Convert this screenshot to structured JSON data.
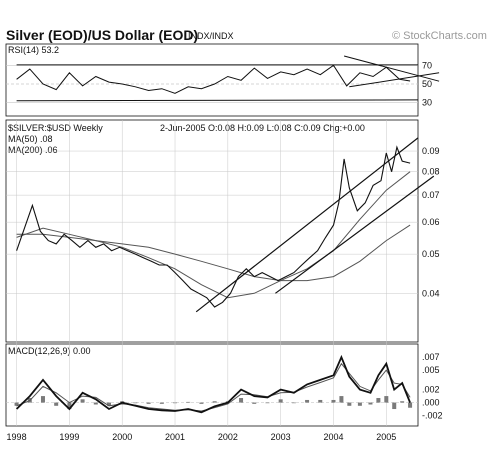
{
  "header": {
    "title": "Silver (EOD)/US Dollar (EOD)",
    "exchange": "INDX/INDX",
    "watermark": "© StockCharts.com"
  },
  "colors": {
    "background": "#ffffff",
    "ink": "#111111",
    "grid": "#c8c8c8",
    "ma_line": "#555555",
    "histogram": "#7a7a7a"
  },
  "chart_data": [
    {
      "type": "line",
      "panel": "rsi",
      "label": "RSI(14) 53.2",
      "ylim": [
        20,
        80
      ],
      "yticks": [
        70,
        50,
        30
      ],
      "levels": [
        70,
        50,
        30
      ],
      "x": [
        1998.0,
        1998.25,
        1998.5,
        1998.75,
        1999.0,
        1999.25,
        1999.5,
        1999.75,
        2000.0,
        2000.25,
        2000.5,
        2000.75,
        2001.0,
        2001.25,
        2001.5,
        2001.75,
        2002.0,
        2002.25,
        2002.5,
        2002.75,
        2003.0,
        2003.25,
        2003.5,
        2003.75,
        2004.0,
        2004.25,
        2004.5,
        2004.75,
        2005.0,
        2005.25,
        2005.45
      ],
      "values": [
        55,
        66,
        50,
        44,
        62,
        48,
        58,
        52,
        50,
        47,
        43,
        45,
        40,
        47,
        45,
        50,
        58,
        54,
        67,
        56,
        63,
        60,
        66,
        60,
        70,
        48,
        62,
        58,
        68,
        55,
        53.2
      ],
      "trendlines": [
        {
          "x": [
            1998.0,
            2005.6
          ],
          "y": [
            70.5,
            70.5
          ]
        },
        {
          "x": [
            1998.0,
            2005.6
          ],
          "y": [
            32,
            33
          ]
        },
        {
          "x": [
            2004.2,
            2006.0
          ],
          "y": [
            80,
            53
          ]
        },
        {
          "x": [
            2004.3,
            2006.0
          ],
          "y": [
            47,
            62
          ]
        }
      ]
    },
    {
      "type": "line",
      "panel": "price",
      "label": "$SILVER:$USD Weekly",
      "ohlc_text": "2-Jun-2005 O:0.08 H:0.09 L:0.08 C:0.09 Chg:+0.00",
      "ma50_label": "MA(50) .08",
      "ma200_label": "MA(200) .06",
      "scale": "log",
      "ylim": [
        0.031,
        0.105
      ],
      "yticks": [
        0.09,
        0.08,
        0.07,
        0.06,
        0.05,
        0.04
      ],
      "ytick_labels": [
        "0.09",
        "0.08",
        "0.07",
        "0.06",
        "0.05",
        "0.04"
      ],
      "xlim": [
        1997.8,
        2005.6
      ],
      "xticks": [
        1998,
        1999,
        2000,
        2001,
        2002,
        2003,
        2004,
        2005
      ],
      "x": [
        1998.0,
        1998.15,
        1998.3,
        1998.45,
        1998.6,
        1998.75,
        1998.9,
        1999.05,
        1999.2,
        1999.35,
        1999.5,
        1999.65,
        1999.8,
        1999.95,
        2000.1,
        2000.25,
        2000.4,
        2000.55,
        2000.7,
        2000.85,
        2001.0,
        2001.15,
        2001.3,
        2001.45,
        2001.6,
        2001.75,
        2001.9,
        2002.05,
        2002.2,
        2002.35,
        2002.5,
        2002.65,
        2002.8,
        2002.95,
        2003.1,
        2003.25,
        2003.4,
        2003.55,
        2003.7,
        2003.85,
        2004.0,
        2004.1,
        2004.2,
        2004.3,
        2004.45,
        2004.6,
        2004.75,
        2004.9,
        2005.0,
        2005.1,
        2005.2,
        2005.3,
        2005.45
      ],
      "values": [
        0.051,
        0.058,
        0.066,
        0.057,
        0.054,
        0.053,
        0.056,
        0.054,
        0.052,
        0.054,
        0.052,
        0.053,
        0.051,
        0.052,
        0.051,
        0.05,
        0.049,
        0.048,
        0.047,
        0.047,
        0.045,
        0.043,
        0.041,
        0.04,
        0.039,
        0.037,
        0.038,
        0.04,
        0.044,
        0.046,
        0.044,
        0.045,
        0.044,
        0.043,
        0.044,
        0.045,
        0.047,
        0.049,
        0.051,
        0.055,
        0.059,
        0.067,
        0.086,
        0.073,
        0.064,
        0.067,
        0.074,
        0.076,
        0.089,
        0.08,
        0.092,
        0.085,
        0.084
      ],
      "ma50": {
        "x": [
          1998.0,
          1998.5,
          1999.0,
          1999.5,
          2000.0,
          2000.5,
          2001.0,
          2001.5,
          2002.0,
          2002.5,
          2003.0,
          2003.5,
          2004.0,
          2004.5,
          2005.0,
          2005.45
        ],
        "values": [
          0.055,
          0.058,
          0.056,
          0.054,
          0.052,
          0.049,
          0.046,
          0.042,
          0.039,
          0.04,
          0.043,
          0.046,
          0.051,
          0.061,
          0.072,
          0.08
        ]
      },
      "ma200": {
        "x": [
          1998.0,
          1998.5,
          1999.0,
          1999.5,
          2000.0,
          2000.5,
          2001.0,
          2001.5,
          2002.0,
          2002.5,
          2003.0,
          2003.5,
          2004.0,
          2004.5,
          2005.0,
          2005.45
        ],
        "values": [
          0.056,
          0.056,
          0.055,
          0.054,
          0.053,
          0.052,
          0.05,
          0.048,
          0.046,
          0.044,
          0.043,
          0.043,
          0.044,
          0.048,
          0.054,
          0.059
        ]
      },
      "trendlines": [
        {
          "x": [
            2001.4,
            2005.6
          ],
          "y": [
            0.036,
            0.097
          ]
        },
        {
          "x": [
            2002.9,
            2005.9
          ],
          "y": [
            0.04,
            0.078
          ]
        }
      ]
    },
    {
      "type": "line",
      "panel": "macd",
      "label": "MACD(12,26,9) 0.00",
      "ylim": [
        -0.003,
        0.0078
      ],
      "yticks": [
        0.007,
        0.005,
        0.002,
        0.0,
        -0.002
      ],
      "ytick_labels": [
        ".007",
        ".005",
        ".002",
        ".000",
        "-.002"
      ],
      "x": [
        1998.0,
        1998.25,
        1998.5,
        1998.75,
        1999.0,
        1999.25,
        1999.5,
        1999.75,
        2000.0,
        2000.25,
        2000.5,
        2000.75,
        2001.0,
        2001.25,
        2001.5,
        2001.75,
        2002.0,
        2002.25,
        2002.5,
        2002.75,
        2003.0,
        2003.25,
        2003.5,
        2003.75,
        2004.0,
        2004.15,
        2004.3,
        2004.5,
        2004.7,
        2004.85,
        2005.0,
        2005.15,
        2005.3,
        2005.45
      ],
      "macd": [
        -0.001,
        0.001,
        0.0035,
        0.001,
        -0.001,
        0.0015,
        0.0005,
        -0.001,
        0.0,
        -0.0005,
        -0.001,
        -0.0012,
        -0.0013,
        -0.001,
        -0.0015,
        -0.0006,
        0.0,
        0.002,
        0.001,
        0.0008,
        0.002,
        0.0015,
        0.0028,
        0.0035,
        0.0042,
        0.007,
        0.004,
        0.002,
        0.0015,
        0.0042,
        0.006,
        0.002,
        0.003,
        0.0
      ],
      "signal": [
        -0.0005,
        0.0003,
        0.0025,
        0.0015,
        0.0,
        0.001,
        0.0008,
        -0.0005,
        -0.0002,
        -0.0004,
        -0.0008,
        -0.001,
        -0.0012,
        -0.0011,
        -0.0013,
        -0.0008,
        -0.0002,
        0.0013,
        0.0012,
        0.0009,
        0.0015,
        0.0016,
        0.0024,
        0.0031,
        0.0038,
        0.006,
        0.0045,
        0.0025,
        0.0018,
        0.0035,
        0.005,
        0.003,
        0.0028,
        0.0008
      ],
      "histogram": [
        -0.0005,
        0.0007,
        0.001,
        -0.0005,
        -0.001,
        0.0005,
        -0.0003,
        -0.0005,
        0.0002,
        -0.0001,
        -0.0002,
        -0.0002,
        -0.0001,
        0.0001,
        -0.0002,
        0.0002,
        0.0002,
        0.0007,
        -0.0002,
        -0.0001,
        0.0005,
        -0.0001,
        0.0004,
        0.0004,
        0.0004,
        0.001,
        -0.0005,
        -0.0005,
        -0.0003,
        0.0007,
        0.001,
        -0.001,
        0.0002,
        -0.0008
      ]
    }
  ]
}
